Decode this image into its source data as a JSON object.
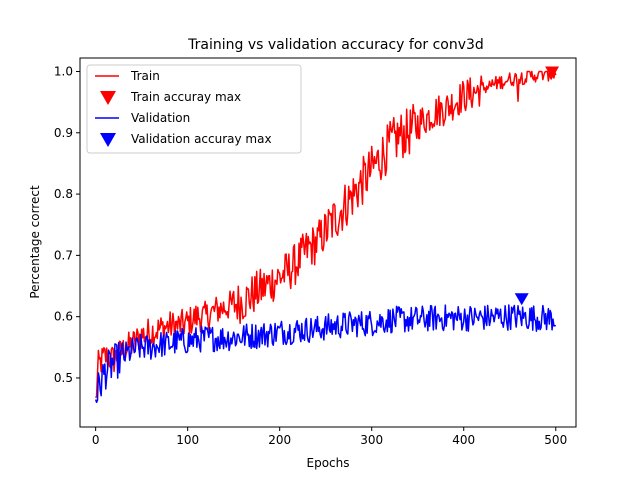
{
  "chart_data": {
    "type": "line",
    "title": "Training vs validation accuracy for conv3d",
    "xlabel": "Epochs",
    "ylabel": "Percentage correct",
    "xlim": [
      -17,
      522
    ],
    "ylim": [
      0.42,
      1.022
    ],
    "xticks": [
      0,
      100,
      200,
      300,
      400,
      500
    ],
    "yticks": [
      0.5,
      0.6,
      0.7,
      0.8,
      0.9,
      1.0
    ],
    "ytick_labels": [
      "0.5",
      "0.6",
      "0.7",
      "0.8",
      "0.9",
      "1.0"
    ],
    "grid": false,
    "legend_position": "top-left",
    "legend": [
      {
        "label": "Train",
        "kind": "line",
        "series": "train"
      },
      {
        "label": "Train accuray max",
        "kind": "marker",
        "series": "train"
      },
      {
        "label": "Validation",
        "kind": "line",
        "series": "validation"
      },
      {
        "label": "Validation accuray max",
        "kind": "marker",
        "series": "validation"
      }
    ],
    "series": [
      {
        "name": "Train",
        "key": "train",
        "color": "#ff0000",
        "anchors": [
          [
            0,
            0.46
          ],
          [
            3,
            0.52
          ],
          [
            10,
            0.535
          ],
          [
            20,
            0.53
          ],
          [
            30,
            0.545
          ],
          [
            40,
            0.555
          ],
          [
            50,
            0.57
          ],
          [
            60,
            0.575
          ],
          [
            70,
            0.58
          ],
          [
            80,
            0.585
          ],
          [
            90,
            0.585
          ],
          [
            100,
            0.59
          ],
          [
            110,
            0.6
          ],
          [
            120,
            0.6
          ],
          [
            130,
            0.61
          ],
          [
            140,
            0.615
          ],
          [
            150,
            0.62
          ],
          [
            160,
            0.625
          ],
          [
            170,
            0.635
          ],
          [
            180,
            0.645
          ],
          [
            190,
            0.655
          ],
          [
            200,
            0.665
          ],
          [
            210,
            0.675
          ],
          [
            220,
            0.69
          ],
          [
            230,
            0.71
          ],
          [
            240,
            0.72
          ],
          [
            250,
            0.74
          ],
          [
            260,
            0.76
          ],
          [
            270,
            0.78
          ],
          [
            280,
            0.8
          ],
          [
            290,
            0.82
          ],
          [
            300,
            0.84
          ],
          [
            310,
            0.86
          ],
          [
            320,
            0.88
          ],
          [
            330,
            0.895
          ],
          [
            340,
            0.9
          ],
          [
            350,
            0.915
          ],
          [
            360,
            0.925
          ],
          [
            370,
            0.935
          ],
          [
            380,
            0.94
          ],
          [
            390,
            0.95
          ],
          [
            400,
            0.96
          ],
          [
            410,
            0.965
          ],
          [
            420,
            0.972
          ],
          [
            430,
            0.978
          ],
          [
            440,
            0.983
          ],
          [
            450,
            0.987
          ],
          [
            460,
            0.99
          ],
          [
            470,
            0.992
          ],
          [
            480,
            0.995
          ],
          [
            490,
            0.996
          ],
          [
            500,
            0.996
          ]
        ],
        "max_point": {
          "x": 496,
          "y": 1.0
        }
      },
      {
        "name": "Validation",
        "key": "validation",
        "color": "#0000ff",
        "anchors": [
          [
            0,
            0.47
          ],
          [
            5,
            0.49
          ],
          [
            10,
            0.51
          ],
          [
            20,
            0.525
          ],
          [
            30,
            0.535
          ],
          [
            40,
            0.545
          ],
          [
            50,
            0.55
          ],
          [
            60,
            0.55
          ],
          [
            70,
            0.555
          ],
          [
            80,
            0.555
          ],
          [
            90,
            0.56
          ],
          [
            100,
            0.56
          ],
          [
            120,
            0.565
          ],
          [
            140,
            0.565
          ],
          [
            160,
            0.568
          ],
          [
            180,
            0.57
          ],
          [
            200,
            0.575
          ],
          [
            220,
            0.578
          ],
          [
            240,
            0.58
          ],
          [
            260,
            0.585
          ],
          [
            280,
            0.588
          ],
          [
            300,
            0.59
          ],
          [
            320,
            0.595
          ],
          [
            340,
            0.595
          ],
          [
            360,
            0.597
          ],
          [
            380,
            0.598
          ],
          [
            400,
            0.598
          ],
          [
            420,
            0.598
          ],
          [
            440,
            0.6
          ],
          [
            460,
            0.6
          ],
          [
            480,
            0.598
          ],
          [
            500,
            0.597
          ]
        ],
        "max_point": {
          "x": 463,
          "y": 0.63
        }
      }
    ]
  }
}
